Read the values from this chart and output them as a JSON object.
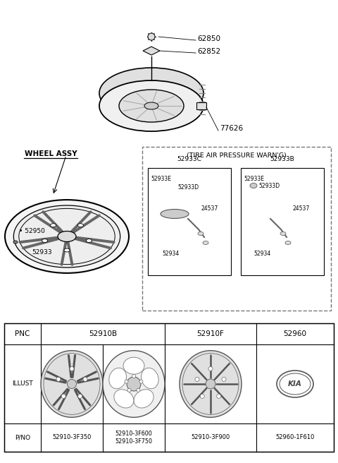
{
  "bg_color": "#ffffff",
  "line_color": "#000000",
  "text_color": "#000000",
  "spare_tire_label": "77626",
  "cap_label": "62850",
  "holder_label": "62852",
  "wheel_assy_label": "WHEEL ASSY",
  "valve_label1": "52950",
  "valve_label2": "52933",
  "tpms_title": "(TIRE AIR PRESSURE WARN'G)",
  "left_box_header": "52933C",
  "right_box_header": "52933B",
  "left_parts": [
    "52933E",
    "52933D",
    "24537",
    "52934"
  ],
  "right_parts": [
    "52933E",
    "52933D",
    "24537",
    "52934"
  ],
  "pnc_labels": [
    "PNC",
    "52910B",
    "52910F",
    "52960"
  ],
  "illust_label": "ILLUST",
  "pno_label": "P/NO",
  "pno_values": [
    "52910-3F350",
    "52910-3F600\n52910-3F750",
    "52910-3F900",
    "52960-1F610"
  ]
}
